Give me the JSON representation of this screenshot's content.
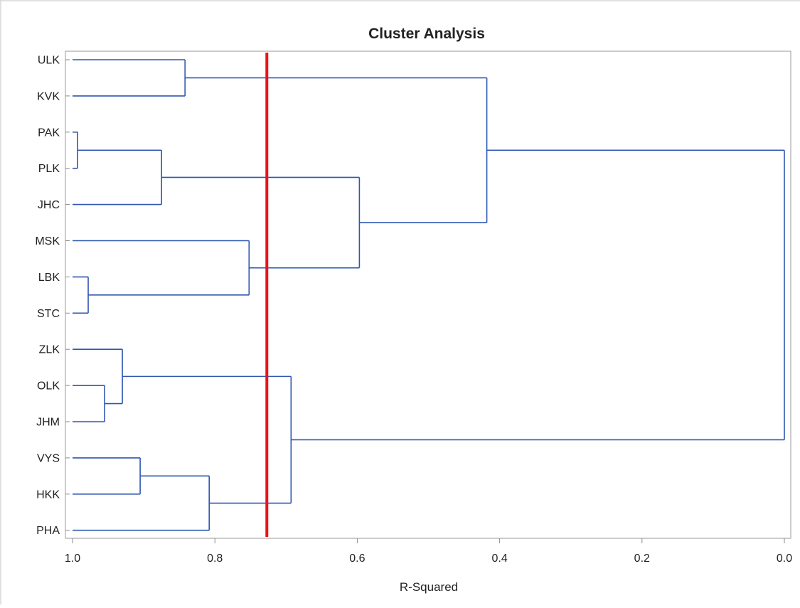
{
  "chart_data": {
    "type": "dendrogram",
    "title": "Cluster Analysis",
    "xlabel": "R-Squared",
    "ylabel": "",
    "xlim": [
      1.0,
      0.0
    ],
    "x_reversed": true,
    "xticks": [
      1.0,
      0.8,
      0.6,
      0.4,
      0.2,
      0.0
    ],
    "xtick_labels": [
      "1.0",
      "0.8",
      "0.6",
      "0.4",
      "0.2",
      "0.0"
    ],
    "leaves": [
      "ULK",
      "KVK",
      "PAK",
      "PLK",
      "JHC",
      "MSK",
      "LBK",
      "STC",
      "ZLK",
      "OLK",
      "JHM",
      "VYS",
      "HKK",
      "PHA"
    ],
    "merges": [
      {
        "children": [
          "PAK",
          "PLK"
        ],
        "r_squared": 0.993
      },
      {
        "children": [
          "LBK",
          "STC"
        ],
        "r_squared": 0.978
      },
      {
        "children": [
          "OLK",
          "JHM"
        ],
        "r_squared": 0.955
      },
      {
        "children": [
          "ZLK",
          "OLK+JHM"
        ],
        "r_squared": 0.93
      },
      {
        "children": [
          "VYS",
          "HKK"
        ],
        "r_squared": 0.905
      },
      {
        "children": [
          "PAK+PLK",
          "JHC"
        ],
        "r_squared": 0.875
      },
      {
        "children": [
          "ULK",
          "KVK"
        ],
        "r_squared": 0.842
      },
      {
        "children": [
          "VYS+HKK",
          "PHA"
        ],
        "r_squared": 0.808
      },
      {
        "children": [
          "MSK",
          "LBK+STC"
        ],
        "r_squared": 0.752
      },
      {
        "children": [
          "ZLK+OLK+JHM",
          "VYS+HKK+PHA"
        ],
        "r_squared": 0.693
      },
      {
        "children": [
          "PAK+PLK+JHC",
          "MSK+LBK+STC"
        ],
        "r_squared": 0.597
      },
      {
        "children": [
          "ULK+KVK",
          "PAK+PLK+JHC+MSK+LBK+STC"
        ],
        "r_squared": 0.418
      },
      {
        "children": [
          "ULK+KVK+PAK+PLK+JHC+MSK+LBK+STC",
          "ZLK+OLK+JHM+VYS+HKK+PHA"
        ],
        "r_squared": 0.0
      }
    ],
    "reference_line": {
      "r_squared": 0.727,
      "color": "#e8141b"
    },
    "grid": false,
    "legend": "none"
  },
  "colors": {
    "branch": "#2f57b0",
    "reference_line": "#e8141b",
    "frame": "#9a9a9a",
    "text": "#222222"
  }
}
